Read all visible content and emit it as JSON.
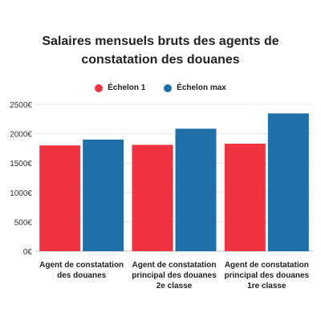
{
  "chart_data": {
    "type": "bar",
    "title": "Salaires mensuels bruts des agents de constatation des douanes",
    "categories": [
      [
        "Agent de constatation",
        "des douanes"
      ],
      [
        "Agent de constatation",
        "principal des douanes",
        "2e classe"
      ],
      [
        "Agent de constatation",
        "principal des douanes",
        "1re classe"
      ]
    ],
    "series": [
      {
        "name": "Échelon 1",
        "color": "#ef3340",
        "values": [
          1800,
          1810,
          1830
        ]
      },
      {
        "name": "Échelon max",
        "color": "#1f6fa8",
        "values": [
          1900,
          2085,
          2345
        ]
      }
    ],
    "ylim": [
      0,
      2500
    ],
    "yticks": [
      0,
      500,
      1000,
      1500,
      2000,
      2500
    ],
    "ytick_labels": [
      "0€",
      "500€",
      "1000€",
      "1500€",
      "2000€",
      "2500€"
    ],
    "legend_position": "top-center",
    "grid": true
  }
}
